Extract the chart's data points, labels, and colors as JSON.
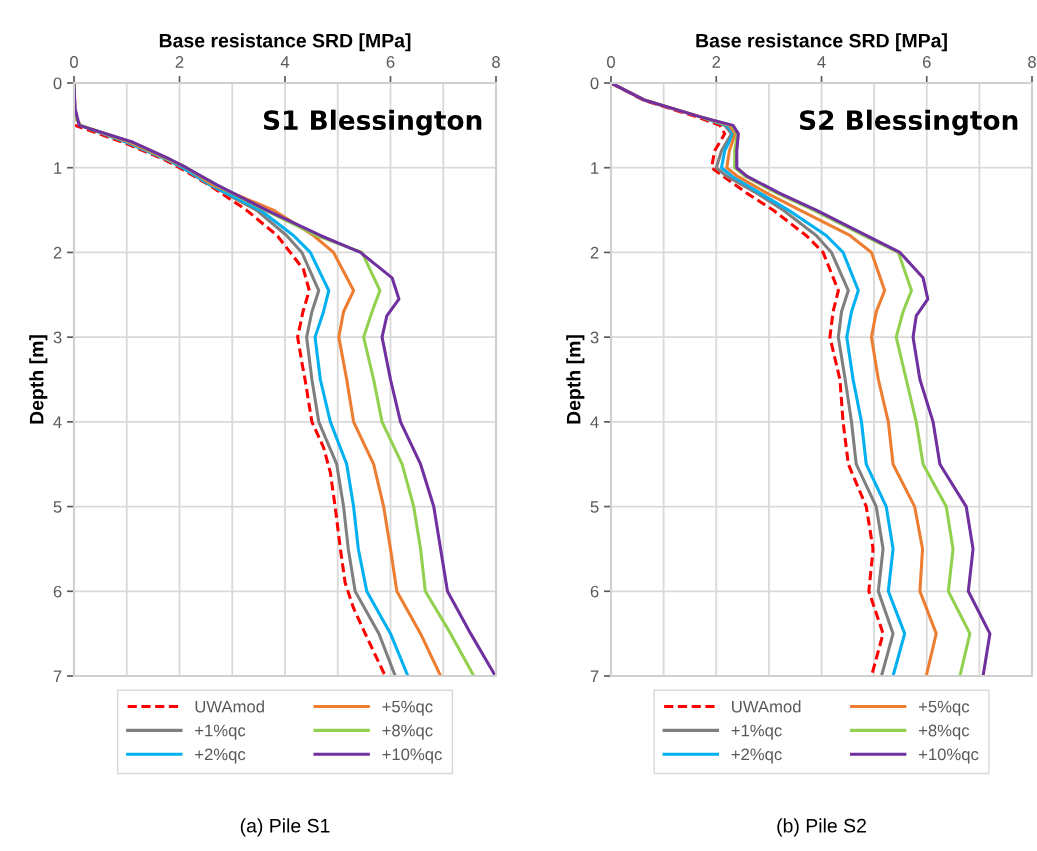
{
  "chart_data": [
    {
      "type": "line",
      "title": "S1 Blessington",
      "xlabel": "Base resistance SRD [MPa]",
      "ylabel": "Depth [m]",
      "annotations": [
        "(a) Pile S1"
      ],
      "xlim": [
        0,
        8
      ],
      "xticks": [
        0,
        {
          "value": 1,
          "label": null
        },
        2,
        {
          "value": 3,
          "label": null
        },
        4,
        {
          "value": 5,
          "label": null
        },
        6,
        {
          "value": 7,
          "label": null
        },
        8
      ],
      "ylim": [
        7,
        0
      ],
      "yticks": [
        0,
        1,
        2,
        3,
        4,
        5,
        6,
        7
      ],
      "grid": true,
      "legend": "bottom",
      "marker": "none",
      "series": [
        {
          "name": "UWAmod",
          "color": "#ff0000",
          "line_style": "dashed",
          "x": [
            0,
            0.02,
            0.93,
            1.7,
            2.0,
            2.55,
            3.27,
            3.85,
            4.1,
            4.35,
            4.46,
            4.34,
            4.24,
            4.32,
            4.38,
            4.51,
            4.73,
            4.86,
            4.95,
            5.05,
            5.14,
            5.3,
            5.52,
            5.9
          ],
          "values": [
            0,
            0.5,
            0.7,
            0.9,
            1.0,
            1.2,
            1.5,
            1.8,
            2.0,
            2.2,
            2.45,
            2.7,
            3.0,
            3.3,
            3.5,
            4.0,
            4.3,
            4.6,
            5.0,
            5.5,
            5.9,
            6.2,
            6.5,
            7.0
          ]
        },
        {
          "name": "+1%qc",
          "color": "#7f7f7f",
          "line_style": "solid",
          "x": [
            0,
            0.02,
            0.12,
            1.0,
            1.75,
            2.05,
            2.57,
            3.46,
            4.03,
            4.32,
            4.64,
            4.51,
            4.41,
            4.51,
            4.64,
            4.98,
            5.11,
            5.2,
            5.33,
            5.78,
            6.09
          ],
          "values": [
            0,
            0.4,
            0.5,
            0.7,
            0.9,
            1.0,
            1.2,
            1.5,
            1.8,
            2.0,
            2.45,
            2.7,
            3.0,
            3.5,
            4.0,
            4.5,
            5.0,
            5.5,
            6.0,
            6.5,
            7.0
          ]
        },
        {
          "name": "+2%qc",
          "color": "#00b0f0",
          "line_style": "solid",
          "x": [
            0.12,
            1.0,
            1.75,
            2.07,
            2.58,
            3.53,
            4.16,
            4.48,
            4.83,
            4.73,
            4.57,
            4.67,
            4.86,
            5.17,
            5.3,
            5.39,
            5.55,
            6.0,
            6.33
          ],
          "values": [
            0.5,
            0.7,
            0.9,
            1.0,
            1.2,
            1.5,
            1.8,
            2.0,
            2.45,
            2.7,
            3.0,
            3.5,
            4.0,
            4.5,
            5.0,
            5.5,
            6.0,
            6.5,
            7.0
          ]
        },
        {
          "name": "+5%qc",
          "color": "#ed7d31",
          "line_style": "solid",
          "x": [
            0,
            0.02,
            0.12,
            1.05,
            1.78,
            2.13,
            2.62,
            3.78,
            4.54,
            4.92,
            5.3,
            5.11,
            5.02,
            5.17,
            5.3,
            5.68,
            5.87,
            6.0,
            6.12,
            6.57,
            6.95
          ],
          "values": [
            0,
            0.4,
            0.5,
            0.7,
            0.9,
            1.0,
            1.2,
            1.5,
            1.8,
            2.0,
            2.45,
            2.7,
            3.0,
            3.5,
            4.0,
            4.5,
            5.0,
            5.5,
            6.0,
            6.5,
            7.0
          ]
        },
        {
          "name": "+8%qc",
          "color": "#92d050",
          "line_style": "solid",
          "x": [
            0,
            0.02,
            0.12,
            1.1,
            1.8,
            2.13,
            2.68,
            3.62,
            4.6,
            5.46,
            5.8,
            5.65,
            5.49,
            5.68,
            5.84,
            6.22,
            6.44,
            6.57,
            6.66,
            7.14,
            7.58
          ],
          "values": [
            0,
            0.4,
            0.5,
            0.7,
            0.9,
            1.0,
            1.2,
            1.5,
            1.8,
            2.0,
            2.45,
            2.7,
            3.0,
            3.5,
            4.0,
            4.5,
            5.0,
            5.5,
            6.0,
            6.5,
            7.0
          ]
        },
        {
          "name": "+10%qc",
          "color": "#7030a0",
          "line_style": "solid",
          "x": [
            0,
            0.02,
            0.1,
            1.12,
            1.82,
            2.13,
            2.7,
            3.65,
            4.67,
            5.43,
            6.03,
            6.16,
            5.93,
            5.84,
            6.0,
            6.19,
            6.57,
            6.82,
            6.95,
            7.08,
            7.52,
            7.99
          ],
          "values": [
            0,
            0.3,
            0.5,
            0.7,
            0.9,
            1.0,
            1.2,
            1.5,
            1.8,
            2.0,
            2.3,
            2.55,
            2.75,
            3.0,
            3.5,
            4.0,
            4.5,
            5.0,
            5.5,
            6.0,
            6.5,
            7.0
          ]
        }
      ]
    },
    {
      "type": "line",
      "title": "S2 Blessington",
      "xlabel": "Base resistance SRD [MPa]",
      "ylabel": "Depth [m]",
      "annotations": [
        "(b) Pile S2"
      ],
      "xlim": [
        0,
        8
      ],
      "xticks": [
        0,
        {
          "value": 1,
          "label": null
        },
        2,
        {
          "value": 3,
          "label": null
        },
        4,
        {
          "value": 5,
          "label": null
        },
        6,
        {
          "value": 7,
          "label": null
        },
        8
      ],
      "ylim": [
        7,
        0
      ],
      "yticks": [
        0,
        1,
        2,
        3,
        4,
        5,
        6,
        7
      ],
      "grid": true,
      "legend": "bottom",
      "marker": "none",
      "series": [
        {
          "name": "UWAmod",
          "color": "#ff0000",
          "line_style": "dashed",
          "x": [
            0,
            0.61,
            1.63,
            2.07,
            2.16,
            1.97,
            1.91,
            2.13,
            2.58,
            3.08,
            3.71,
            4.03,
            4.32,
            4.22,
            4.16,
            4.35,
            4.41,
            4.51,
            4.85,
            4.98,
            4.9,
            5.17,
            4.95
          ],
          "values": [
            0,
            0.2,
            0.4,
            0.5,
            0.6,
            0.8,
            1.0,
            1.1,
            1.3,
            1.5,
            1.8,
            2.0,
            2.45,
            2.7,
            3.0,
            3.5,
            4.0,
            4.5,
            5.0,
            5.5,
            6.0,
            6.5,
            7.0
          ]
        },
        {
          "name": "+1%qc",
          "color": "#7f7f7f",
          "line_style": "solid",
          "x": [
            0,
            0.63,
            1.7,
            2.16,
            2.29,
            2.1,
            2.0,
            2.2,
            2.77,
            3.27,
            3.9,
            4.19,
            4.51,
            4.38,
            4.32,
            4.45,
            4.57,
            4.66,
            5.04,
            5.17,
            5.08,
            5.36,
            5.14
          ],
          "values": [
            0,
            0.2,
            0.4,
            0.5,
            0.6,
            0.8,
            1.0,
            1.1,
            1.3,
            1.5,
            1.8,
            2.0,
            2.45,
            2.7,
            3.0,
            3.5,
            4.0,
            4.5,
            5.0,
            5.5,
            6.0,
            6.5,
            7.0
          ]
        },
        {
          "name": "+2%qc",
          "color": "#00b0f0",
          "line_style": "solid",
          "x": [
            1.7,
            2.2,
            2.32,
            2.16,
            2.1,
            2.3,
            2.83,
            3.37,
            4.09,
            4.41,
            4.7,
            4.57,
            4.48,
            4.6,
            4.76,
            4.85,
            5.23,
            5.36,
            5.27,
            5.58,
            5.36
          ],
          "values": [
            0.4,
            0.5,
            0.6,
            0.8,
            1.0,
            1.1,
            1.3,
            1.5,
            1.8,
            2.0,
            2.45,
            2.7,
            3.0,
            3.5,
            4.0,
            4.5,
            5.0,
            5.5,
            6.0,
            6.5,
            7.0
          ]
        },
        {
          "name": "+5%qc",
          "color": "#ed7d31",
          "line_style": "solid",
          "x": [
            0,
            0.63,
            1.7,
            2.25,
            2.36,
            2.25,
            2.2,
            2.4,
            2.96,
            3.59,
            4.54,
            4.95,
            5.2,
            5.04,
            4.95,
            5.08,
            5.27,
            5.36,
            5.77,
            5.92,
            5.87,
            6.18,
            5.99
          ],
          "values": [
            0,
            0.2,
            0.4,
            0.5,
            0.6,
            0.8,
            1.0,
            1.1,
            1.3,
            1.5,
            1.8,
            2.0,
            2.45,
            2.7,
            3.0,
            3.5,
            4.0,
            4.5,
            5.0,
            5.5,
            6.0,
            6.5,
            7.0
          ]
        },
        {
          "name": "+8%qc",
          "color": "#92d050",
          "line_style": "solid",
          "x": [
            1.7,
            2.3,
            2.4,
            2.35,
            2.35,
            2.55,
            3.15,
            3.85,
            4.8,
            5.46,
            5.71,
            5.55,
            5.42,
            5.61,
            5.8,
            5.93,
            6.37,
            6.5,
            6.41,
            6.82,
            6.63
          ],
          "values": [
            0.4,
            0.5,
            0.6,
            0.8,
            1.0,
            1.1,
            1.3,
            1.5,
            1.8,
            2.0,
            2.45,
            2.7,
            3.0,
            3.5,
            4.0,
            4.5,
            5.0,
            5.5,
            6.0,
            6.5,
            7.0
          ]
        },
        {
          "name": "+10%qc",
          "color": "#7030a0",
          "line_style": "solid",
          "x": [
            0,
            0.63,
            1.7,
            2.32,
            2.42,
            2.39,
            2.39,
            2.58,
            3.2,
            3.9,
            4.85,
            5.49,
            5.93,
            6.02,
            5.8,
            5.74,
            5.87,
            6.12,
            6.25,
            6.75,
            6.88,
            6.79,
            7.2,
            7.07
          ],
          "values": [
            0,
            0.2,
            0.4,
            0.5,
            0.6,
            0.8,
            1.0,
            1.1,
            1.3,
            1.5,
            1.8,
            2.0,
            2.3,
            2.55,
            2.75,
            3.0,
            3.5,
            4.0,
            4.5,
            5.0,
            5.5,
            6.0,
            6.5,
            7.0
          ]
        }
      ]
    }
  ]
}
